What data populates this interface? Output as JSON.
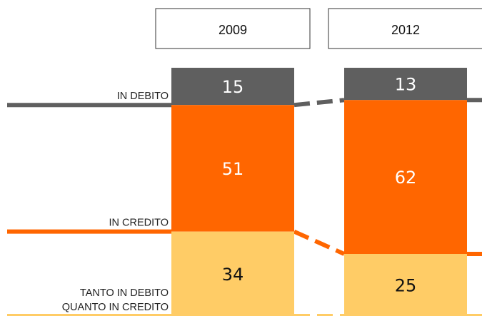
{
  "chart_data": {
    "type": "bar",
    "stacked": true,
    "percent": true,
    "categories": [
      "2009",
      "2012"
    ],
    "series": [
      {
        "key": "debito",
        "name": "IN DEBITO",
        "values": [
          15,
          13
        ],
        "color": "#5f5f5f",
        "text_color": "#ffffff"
      },
      {
        "key": "credito",
        "name": "IN CREDITO",
        "values": [
          51,
          62
        ],
        "color": "#ff6600",
        "text_color": "#ffffff"
      },
      {
        "key": "tanto",
        "name_lines": [
          "TANTO IN DEBITO",
          "QUANTO IN CREDITO"
        ],
        "values": [
          34,
          25
        ],
        "color": "#ffcc66",
        "text_color": "#111111"
      }
    ],
    "legend_position": "left",
    "grid": false
  }
}
